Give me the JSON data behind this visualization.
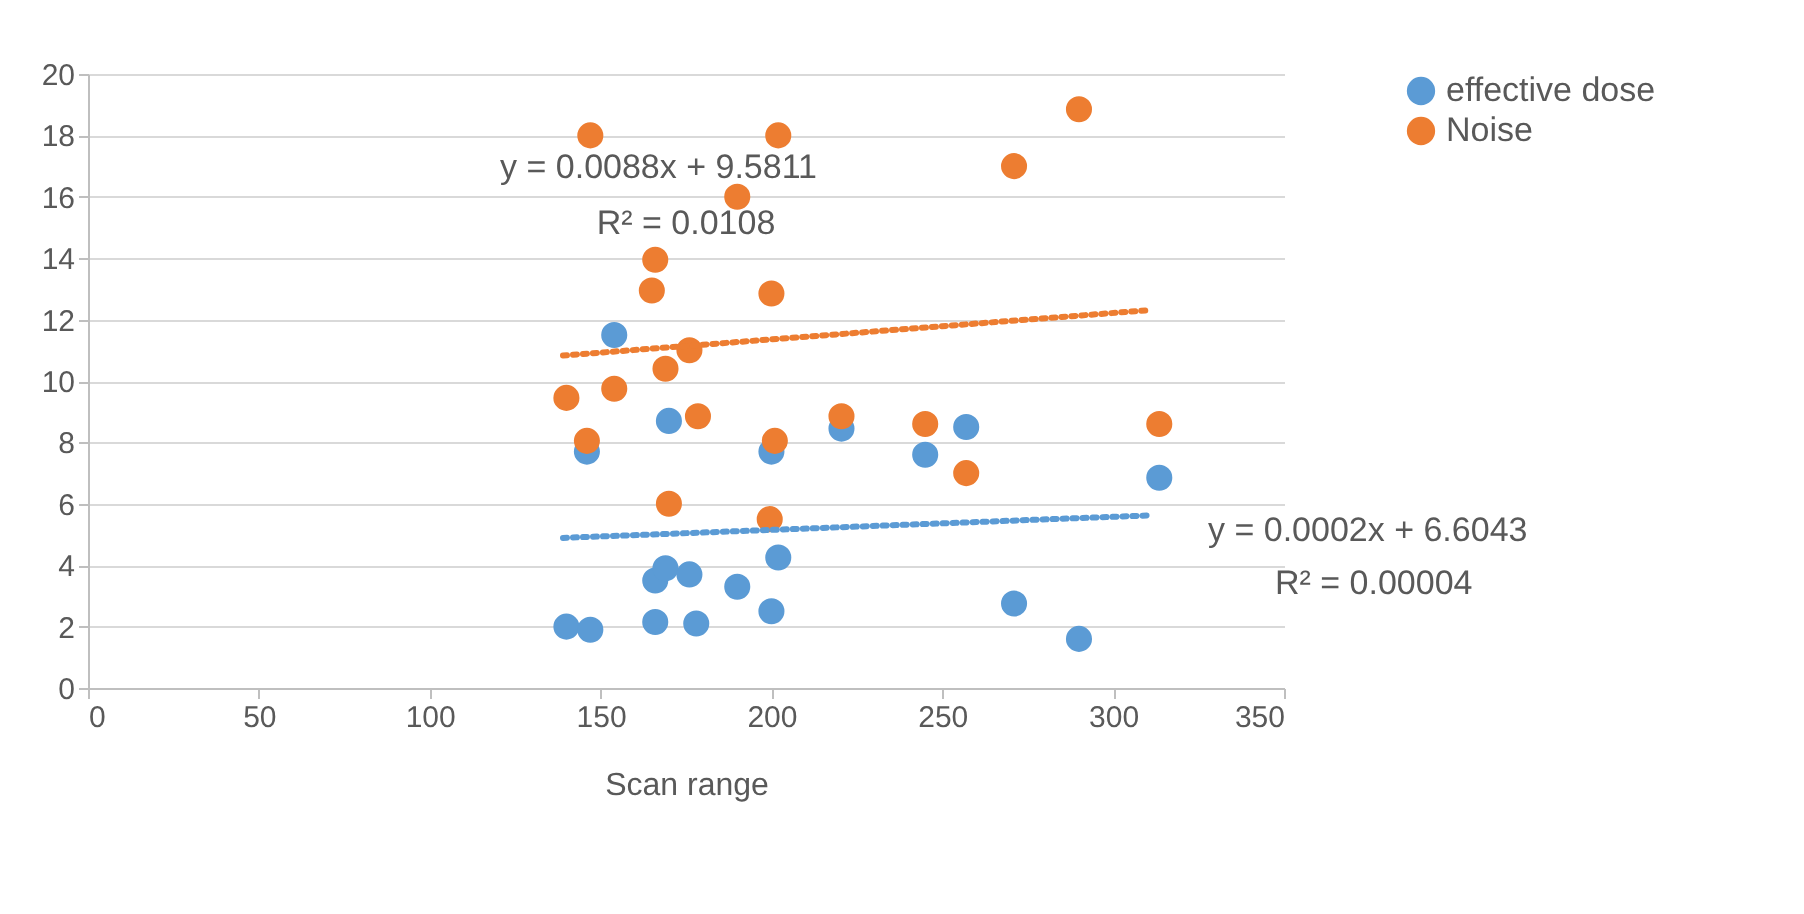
{
  "chart_data": {
    "type": "scatter",
    "xlabel": "Scan range",
    "xlim": [
      0,
      350
    ],
    "xticks": [
      0,
      50,
      100,
      150,
      200,
      250,
      300,
      350
    ],
    "ylim": [
      0,
      20
    ],
    "yticks": [
      0,
      2,
      4,
      6,
      8,
      10,
      12,
      14,
      16,
      18,
      20
    ],
    "grid": "y",
    "legend": "right",
    "marker": "circle",
    "series": [
      {
        "name": "effective dose",
        "color": "#5b9bd5",
        "x": [
          140,
          147,
          154,
          170,
          146,
          166,
          169,
          176,
          166,
          178,
          190,
          202,
          200,
          200,
          220.5,
          245,
          257,
          313.5,
          271,
          290
        ],
        "values": [
          2.0,
          1.9,
          11.5,
          8.7,
          7.7,
          3.5,
          3.9,
          3.7,
          2.15,
          2.1,
          3.3,
          4.25,
          2.5,
          7.7,
          8.45,
          7.6,
          8.5,
          6.85,
          2.75,
          1.6
        ]
      },
      {
        "name": "Noise",
        "color": "#ed7d31",
        "x": [
          147,
          202,
          190,
          166,
          165,
          200,
          176,
          169,
          154,
          140,
          178.5,
          146,
          201,
          220.5,
          170,
          199.5,
          290,
          271,
          245,
          257,
          313.5
        ],
        "values": [
          18,
          18,
          16,
          13.95,
          12.95,
          12.85,
          11,
          10.4,
          9.75,
          9.45,
          8.85,
          8.05,
          8.05,
          8.85,
          6.0,
          5.5,
          18.85,
          17,
          8.6,
          7.0,
          8.6
        ]
      },
      {
        "type": "line",
        "color": "#5b9bd5",
        "line_style": "dotted",
        "marker": "none",
        "x": [
          139,
          310
        ],
        "values": [
          4.89,
          5.62
        ]
      },
      {
        "type": "line",
        "color": "#ed7d31",
        "line_style": "dotted",
        "marker": "none",
        "x": [
          139,
          311
        ],
        "values": [
          10.83,
          12.31
        ]
      }
    ],
    "annotations": [
      "y = 0.0088x + 9.5811",
      "R² = 0.0108",
      "y = 0.0002x + 6.6043",
      "R² = 0.00004"
    ]
  }
}
